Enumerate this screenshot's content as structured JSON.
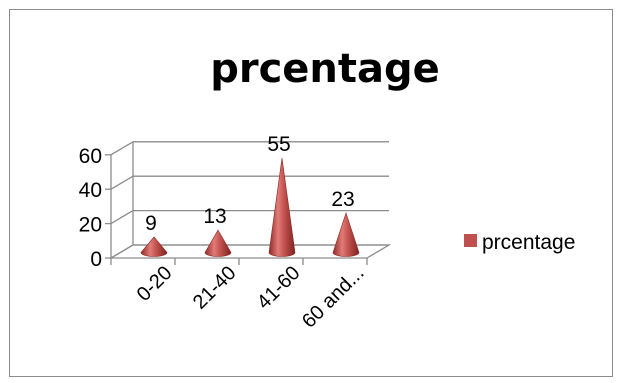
{
  "chart_data": {
    "type": "bar",
    "title": "prcentage",
    "categories": [
      "0-20",
      "21-40",
      "41-60",
      "60 and..."
    ],
    "series": [
      {
        "name": "prcentage",
        "values": [
          9,
          13,
          55,
          23
        ],
        "color": "#c0504d"
      }
    ],
    "ylim": [
      0,
      60
    ],
    "yticks": [
      0,
      20,
      40,
      60
    ],
    "legend_position": "right",
    "grid": true,
    "style": "3d-cone"
  }
}
